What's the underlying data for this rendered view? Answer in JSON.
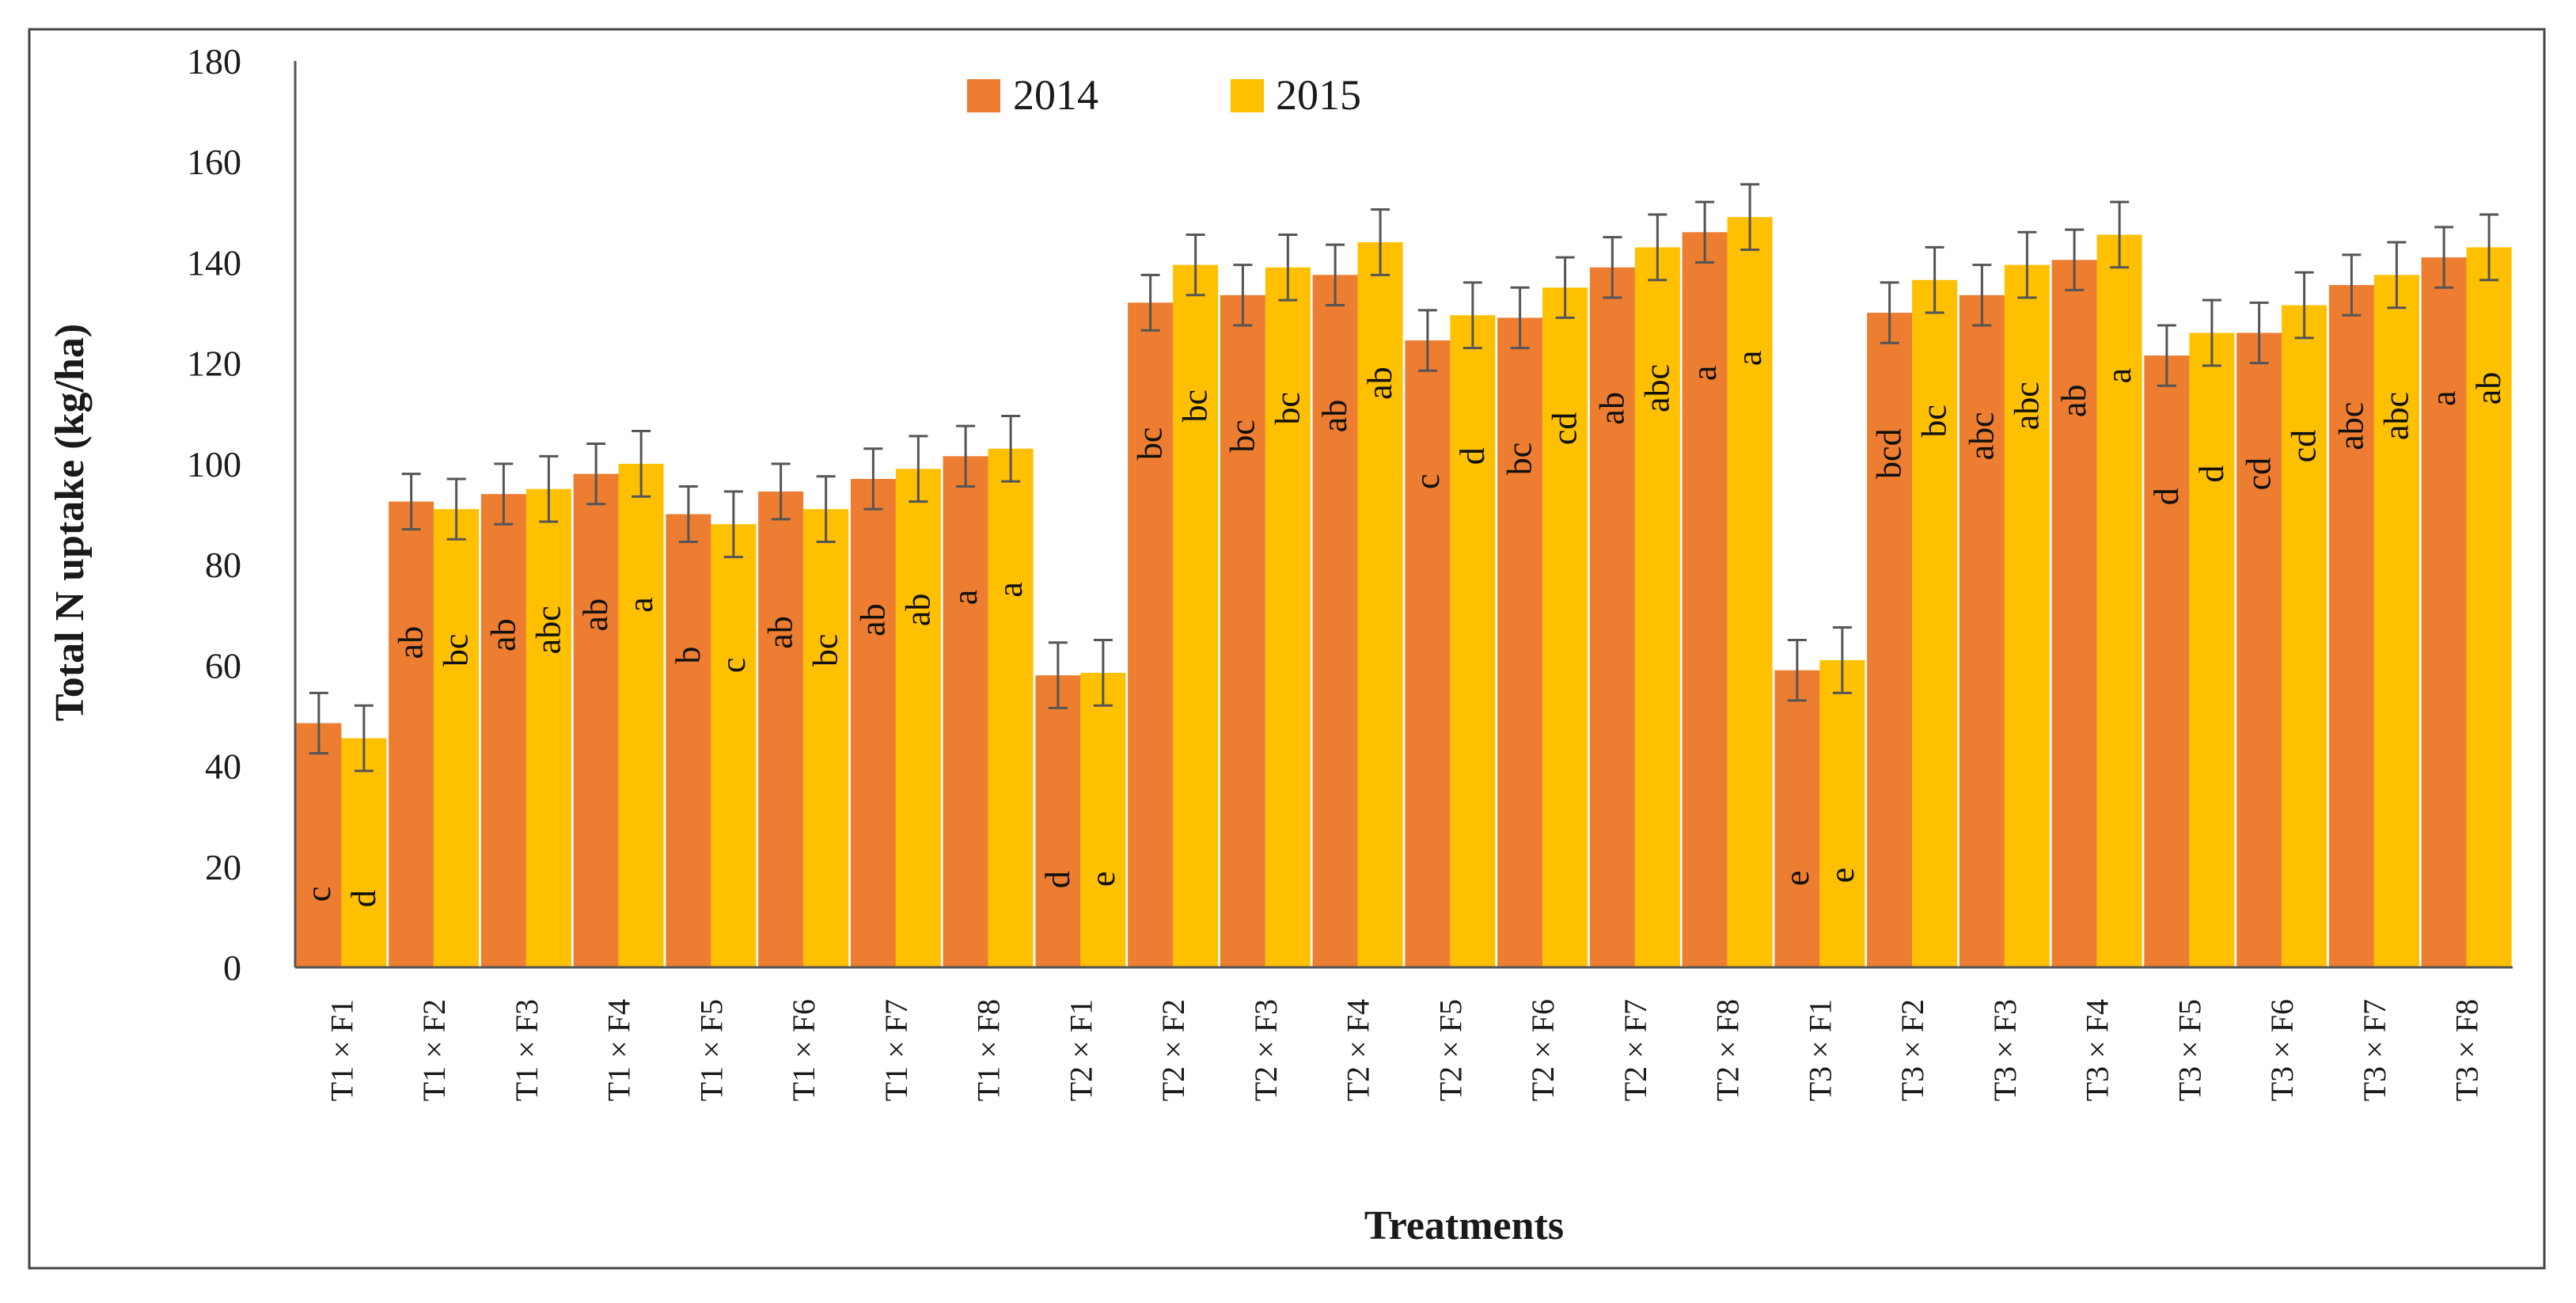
{
  "chart_data": {
    "type": "bar",
    "title": "",
    "xlabel": "Treatments",
    "ylabel": "Total N uptake (kg/ha)",
    "ylim": [
      0,
      180
    ],
    "yticks": [
      0,
      20,
      40,
      60,
      80,
      100,
      120,
      140,
      160,
      180
    ],
    "grid": false,
    "legend_position": "top-center",
    "categories": [
      "T1 × F1",
      "T1 × F2",
      "T1 × F3",
      "T1 × F4",
      "T1 × F5",
      "T1 × F6",
      "T1 × F7",
      "T1 × F8",
      "T2 × F1",
      "T2 × F2",
      "T2 × F3",
      "T2 × F4",
      "T2 × F5",
      "T2 × F6",
      "T2 × F7",
      "T2 × F8",
      "T3 × F1",
      "T3 × F2",
      "T3 × F3",
      "T3 × F4",
      "T3 × F5",
      "T3 × F6",
      "T3 × F7",
      "T3 × F8"
    ],
    "series": [
      {
        "name": "2014",
        "color": "#ED7D31",
        "values": [
          48.5,
          92.5,
          94,
          98,
          90,
          94.5,
          97,
          101.5,
          58,
          132,
          133.5,
          137.5,
          124.5,
          129,
          139,
          146,
          59,
          130,
          133.5,
          140.5,
          121.5,
          126,
          135.5,
          141
        ],
        "errors": [
          6,
          5.5,
          6,
          6,
          5.5,
          5.5,
          6,
          6,
          6.5,
          5.5,
          6,
          6,
          6,
          6,
          6,
          6,
          6,
          6,
          6,
          6,
          6,
          6,
          6,
          6
        ],
        "letters": [
          "c",
          "ab",
          "ab",
          "ab",
          "b",
          "ab",
          "ab",
          "a",
          "d",
          "bc",
          "bc",
          "ab",
          "c",
          "bc",
          "ab",
          "a",
          "e",
          "bcd",
          "abc",
          "ab",
          "d",
          "cd",
          "abc",
          "a"
        ]
      },
      {
        "name": "2015",
        "color": "#FFC000",
        "values": [
          45.5,
          91,
          95,
          100,
          88,
          91,
          99,
          103,
          58.5,
          139.5,
          139,
          144,
          129.5,
          135,
          143,
          149,
          61,
          136.5,
          139.5,
          145.5,
          126,
          131.5,
          137.5,
          143
        ],
        "errors": [
          6.5,
          6,
          6.5,
          6.5,
          6.5,
          6.5,
          6.5,
          6.5,
          6.5,
          6,
          6.5,
          6.5,
          6.5,
          6,
          6.5,
          6.5,
          6.5,
          6.5,
          6.5,
          6.5,
          6.5,
          6.5,
          6.5,
          6.5
        ],
        "letters": [
          "d",
          "bc",
          "abc",
          "a",
          "c",
          "bc",
          "ab",
          "a",
          "e",
          "bc",
          "bc",
          "ab",
          "d",
          "cd",
          "abc",
          "a",
          "e",
          "bc",
          "abc",
          "a",
          "d",
          "cd",
          "abc",
          "ab"
        ]
      }
    ]
  }
}
